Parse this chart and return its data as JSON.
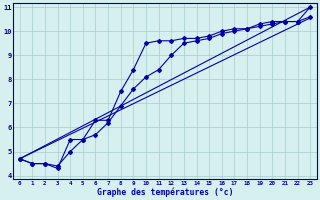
{
  "xlabel": "Graphe des températures (°c)",
  "background_color": "#d6f0f0",
  "grid_color": "#aacccc",
  "line_color": "#0000aa",
  "xlim": [
    -0.5,
    23.5
  ],
  "ylim": [
    3.85,
    11.15
  ],
  "yticks": [
    4,
    5,
    6,
    7,
    8,
    9,
    10,
    11
  ],
  "xticks": [
    0,
    1,
    2,
    3,
    4,
    5,
    6,
    7,
    8,
    9,
    10,
    11,
    12,
    13,
    14,
    15,
    16,
    17,
    18,
    19,
    20,
    21,
    22,
    23
  ],
  "line1_x": [
    0,
    1,
    2,
    3,
    4,
    5,
    6,
    7,
    8,
    9,
    10,
    11,
    12,
    13,
    14,
    15,
    16,
    17,
    18,
    19,
    20,
    21,
    22,
    23
  ],
  "line1_y": [
    4.7,
    4.5,
    4.5,
    4.3,
    5.5,
    5.5,
    6.3,
    6.3,
    7.5,
    8.4,
    9.5,
    9.6,
    9.6,
    9.7,
    9.7,
    9.8,
    10.0,
    10.1,
    10.1,
    10.3,
    10.4,
    10.4,
    10.4,
    11.0
  ],
  "line2_x": [
    0,
    1,
    2,
    3,
    4,
    5,
    6,
    7,
    8,
    9,
    10,
    11,
    12,
    13,
    14,
    15,
    16,
    17,
    18,
    19,
    20,
    21,
    22,
    23
  ],
  "line2_y": [
    4.7,
    4.5,
    4.5,
    4.4,
    5.0,
    5.5,
    5.7,
    6.2,
    6.9,
    7.6,
    8.1,
    8.4,
    9.0,
    9.5,
    9.6,
    9.7,
    9.9,
    10.0,
    10.1,
    10.2,
    10.3,
    10.4,
    10.4,
    10.6
  ],
  "line3_x": [
    0,
    23
  ],
  "line3_y": [
    4.7,
    11.0
  ],
  "line4_x": [
    0,
    23
  ],
  "line4_y": [
    4.7,
    10.55
  ],
  "marker": "D",
  "markersize": 2.0,
  "linewidth": 0.8
}
